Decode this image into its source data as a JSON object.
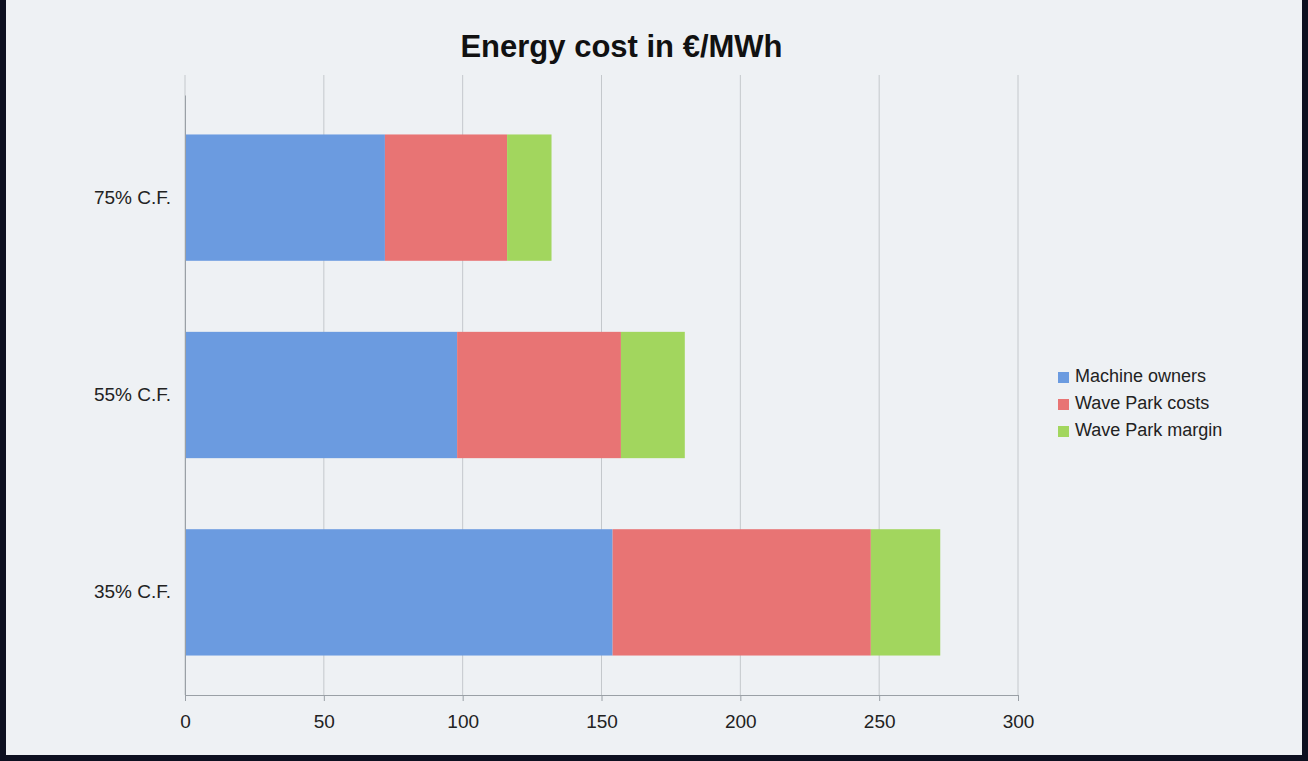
{
  "chart_data": {
    "type": "bar",
    "orientation": "horizontal",
    "stacked": true,
    "title": "Energy cost in €/MWh",
    "categories": [
      "75% C.F.",
      "55% C.F.",
      "35% C.F."
    ],
    "series": [
      {
        "name": "Machine owners",
        "color": "#6b9be0",
        "values": [
          72,
          98,
          154
        ]
      },
      {
        "name": "Wave Park costs",
        "color": "#e87474",
        "values": [
          44,
          59,
          93
        ]
      },
      {
        "name": "Wave Park margin",
        "color": "#a2d65e",
        "values": [
          16,
          23,
          25
        ]
      }
    ],
    "xlim": [
      0,
      300
    ],
    "xticks": [
      0,
      50,
      100,
      150,
      200,
      250,
      300
    ],
    "grid": true,
    "legend": "right"
  }
}
